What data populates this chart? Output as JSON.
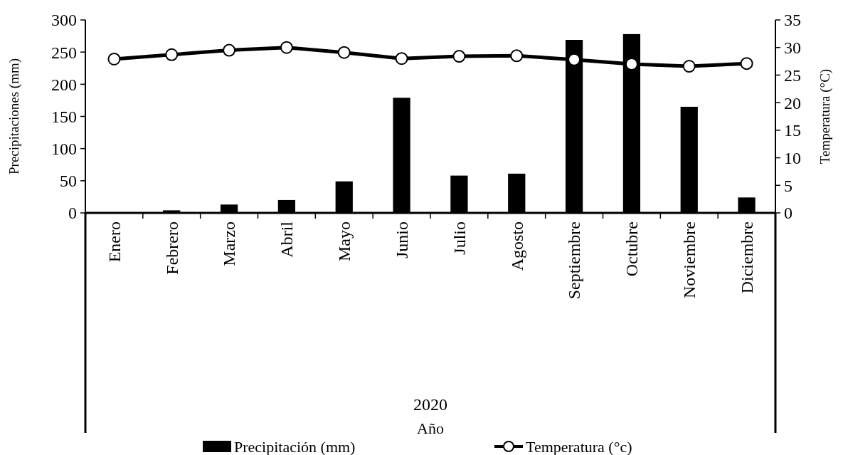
{
  "chart_data": {
    "type": "bar",
    "ylabel": "Precipitaciones (mm)",
    "y2label": "Temperatura (°C)",
    "categories": [
      "Enero",
      "Febrero",
      "Marzo",
      "Abril",
      "Mayo",
      "Junio",
      "Julio",
      "Agosto",
      "Septiembre",
      "Octubre",
      "Noviembre",
      "Diciembre"
    ],
    "series": [
      {
        "name": "Precipitación (mm)",
        "color": "#000000",
        "values": [
          0,
          4,
          13,
          20,
          49,
          179,
          58,
          61,
          269,
          278,
          165,
          24
        ]
      },
      {
        "name": "Temperatura (°c)",
        "type": "line",
        "axis": "y2",
        "color": "#000000",
        "marker": "circle",
        "values": [
          27.9,
          28.7,
          29.5,
          30.0,
          29.1,
          28.0,
          28.4,
          28.5,
          27.8,
          27.0,
          26.6,
          27.1
        ]
      }
    ],
    "ylim": [
      0,
      300
    ],
    "yticks": [
      0,
      50,
      100,
      150,
      200,
      250,
      300
    ],
    "y2lim": [
      0,
      35
    ],
    "y2ticks": [
      0,
      5,
      10,
      15,
      20,
      25,
      30,
      35
    ],
    "annotations": [
      "2020",
      "Año"
    ],
    "legend": "bottom",
    "grid": false
  }
}
